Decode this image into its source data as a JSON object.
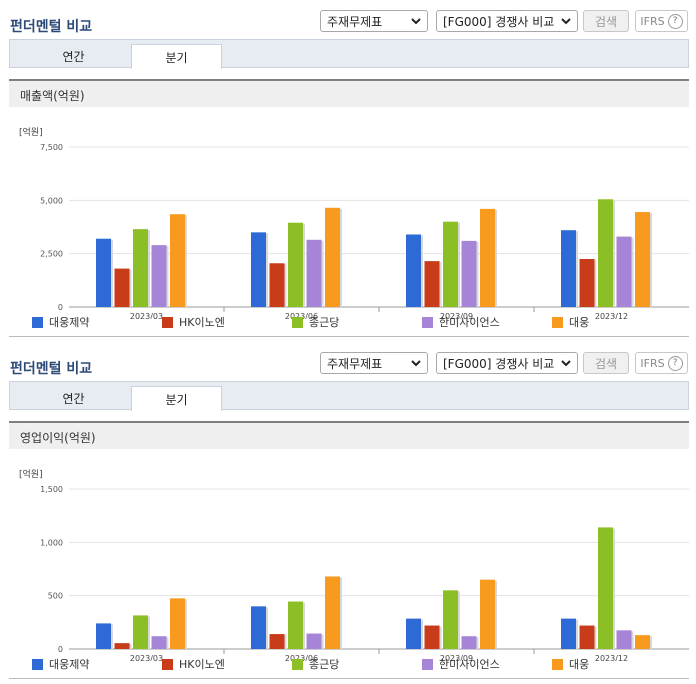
{
  "sections": [
    {
      "title": "펀더멘털 비교",
      "statement_select": "주재무제표",
      "compare_select": "[FG000] 경쟁사 비교",
      "search_label": "검색",
      "ifrs_label": "IFRS",
      "help_glyph": "?",
      "tabs": [
        "연간",
        "분기"
      ],
      "active_tab": "분기",
      "chart_title": "매출액(억원)",
      "unit": "[억원]"
    },
    {
      "title": "펀더멘털 비교",
      "statement_select": "주재무제표",
      "compare_select": "[FG000] 경쟁사 비교",
      "search_label": "검색",
      "ifrs_label": "IFRS",
      "help_glyph": "?",
      "tabs": [
        "연간",
        "분기"
      ],
      "active_tab": "분기",
      "chart_title": "영업이익(억원)",
      "unit": "[억원]"
    }
  ],
  "colors": {
    "대웅제약": "#2e6ad6",
    "HK이노엔": "#c83c1a",
    "종근당": "#8cbf26",
    "한미사이언스": "#a684d8",
    "대웅": "#f79a1d"
  },
  "chart_data": [
    {
      "type": "bar",
      "title": "매출액(억원)",
      "ylabel": "[억원]",
      "categories": [
        "2023/03",
        "2023/06",
        "2023/09",
        "2023/12"
      ],
      "yticks": [
        "0",
        "2,500",
        "5,000",
        "7,500"
      ],
      "ylim": [
        0,
        7500
      ],
      "series": [
        {
          "name": "대웅제약",
          "values": [
            3200,
            3500,
            3400,
            3600
          ]
        },
        {
          "name": "HK이노엔",
          "values": [
            1800,
            2050,
            2150,
            2250
          ]
        },
        {
          "name": "종근당",
          "values": [
            3650,
            3950,
            4000,
            5050
          ]
        },
        {
          "name": "한미사이언스",
          "values": [
            2900,
            3150,
            3100,
            3300
          ]
        },
        {
          "name": "대웅",
          "values": [
            4350,
            4650,
            4600,
            4450
          ]
        }
      ]
    },
    {
      "type": "bar",
      "title": "영업이익(억원)",
      "ylabel": "[억원]",
      "categories": [
        "2023/03",
        "2023/06",
        "2023/09",
        "2023/12"
      ],
      "yticks": [
        "0",
        "500",
        "1,000",
        "1,500"
      ],
      "ylim": [
        0,
        1500
      ],
      "series": [
        {
          "name": "대웅제약",
          "values": [
            240,
            400,
            285,
            285
          ]
        },
        {
          "name": "HK이노엔",
          "values": [
            55,
            140,
            220,
            220
          ]
        },
        {
          "name": "종근당",
          "values": [
            315,
            445,
            550,
            1140
          ]
        },
        {
          "name": "한미사이언스",
          "values": [
            120,
            145,
            120,
            175
          ]
        },
        {
          "name": "대웅",
          "values": [
            475,
            680,
            650,
            130
          ]
        }
      ]
    }
  ]
}
